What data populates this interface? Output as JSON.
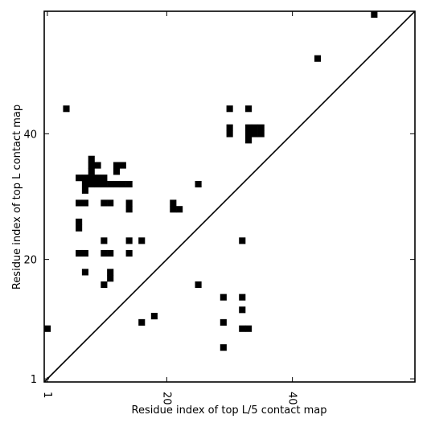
{
  "chart_data": {
    "type": "heatmap",
    "title": "",
    "xlabel": "Residue index of top L/5 contact map",
    "ylabel": "Residue index of top L contact map",
    "xlim": [
      0.5,
      59.5
    ],
    "ylim": [
      0.5,
      59.5
    ],
    "x_ticks": [
      {
        "value": 1,
        "label": "1"
      },
      {
        "value": 20,
        "label": "20"
      },
      {
        "value": 40,
        "label": "40"
      }
    ],
    "y_ticks": [
      {
        "value": 1,
        "label": "1"
      },
      {
        "value": 20,
        "label": "20"
      },
      {
        "value": 40,
        "label": "40"
      }
    ],
    "diagonal": true,
    "cells": [
      [
        53,
        59
      ],
      [
        44,
        52
      ],
      [
        4,
        44
      ],
      [
        30,
        44
      ],
      [
        33,
        44
      ],
      [
        30,
        41
      ],
      [
        33,
        41
      ],
      [
        34,
        41
      ],
      [
        35,
        41
      ],
      [
        30,
        40
      ],
      [
        33,
        40
      ],
      [
        34,
        40
      ],
      [
        35,
        40
      ],
      [
        33,
        39
      ],
      [
        8,
        36
      ],
      [
        9,
        35
      ],
      [
        12,
        35
      ],
      [
        13,
        35
      ],
      [
        8,
        35
      ],
      [
        8,
        34
      ],
      [
        12,
        34
      ],
      [
        6,
        33
      ],
      [
        7,
        33
      ],
      [
        8,
        33
      ],
      [
        9,
        33
      ],
      [
        10,
        33
      ],
      [
        7,
        32
      ],
      [
        8,
        32
      ],
      [
        9,
        32
      ],
      [
        10,
        32
      ],
      [
        11,
        32
      ],
      [
        12,
        32
      ],
      [
        13,
        32
      ],
      [
        14,
        32
      ],
      [
        25,
        32
      ],
      [
        7,
        31
      ],
      [
        6,
        29
      ],
      [
        7,
        29
      ],
      [
        10,
        29
      ],
      [
        11,
        29
      ],
      [
        14,
        29
      ],
      [
        21,
        29
      ],
      [
        14,
        28
      ],
      [
        21,
        28
      ],
      [
        22,
        28
      ],
      [
        6,
        26
      ],
      [
        6,
        25
      ],
      [
        10,
        23
      ],
      [
        14,
        23
      ],
      [
        16,
        23
      ],
      [
        32,
        23
      ],
      [
        6,
        21
      ],
      [
        7,
        21
      ],
      [
        10,
        21
      ],
      [
        11,
        21
      ],
      [
        14,
        21
      ],
      [
        7,
        18
      ],
      [
        11,
        18
      ],
      [
        11,
        17
      ],
      [
        10,
        16
      ],
      [
        25,
        16
      ],
      [
        29,
        14
      ],
      [
        32,
        14
      ],
      [
        32,
        12
      ],
      [
        18,
        11
      ],
      [
        16,
        10
      ],
      [
        29,
        10
      ],
      [
        1,
        9
      ],
      [
        32,
        9
      ],
      [
        33,
        9
      ],
      [
        29,
        6
      ]
    ]
  }
}
